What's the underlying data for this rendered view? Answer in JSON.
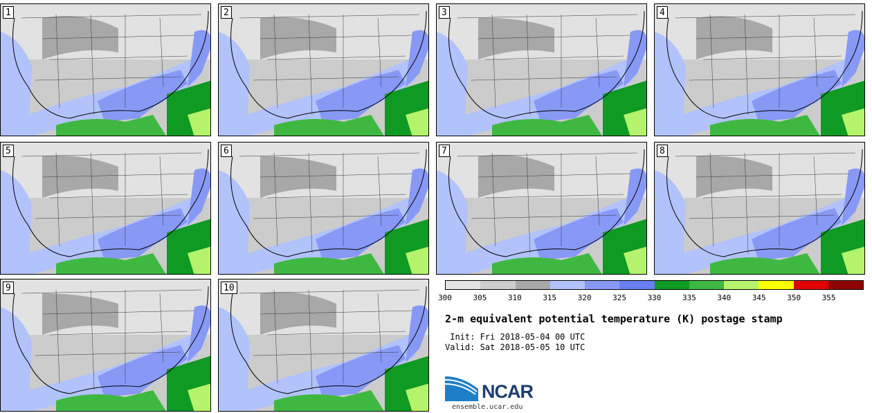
{
  "members": [
    "1",
    "2",
    "3",
    "4",
    "5",
    "6",
    "7",
    "8",
    "9",
    "10"
  ],
  "colorbar": {
    "ticks": [
      "300",
      "305",
      "310",
      "315",
      "320",
      "325",
      "330",
      "335",
      "340",
      "345",
      "350",
      "355"
    ],
    "colors": [
      "#e2e2e2",
      "#cccccc",
      "#a8a8a8",
      "#b2c2fb",
      "#8898f5",
      "#6a7ef4",
      "#0f9a23",
      "#3fb842",
      "#b4f36b",
      "#ffff00",
      "#e00000",
      "#8c0000"
    ]
  },
  "title": "2-m equivalent potential temperature (K) postage stamp",
  "init": " Init: Fri 2018-05-04 00 UTC",
  "valid": "Valid: Sat 2018-05-05 10 UTC",
  "logo_text": "NCAR",
  "site": "ensemble.ucar.edu",
  "icons": {
    "logo": "ncar-logo-icon"
  }
}
